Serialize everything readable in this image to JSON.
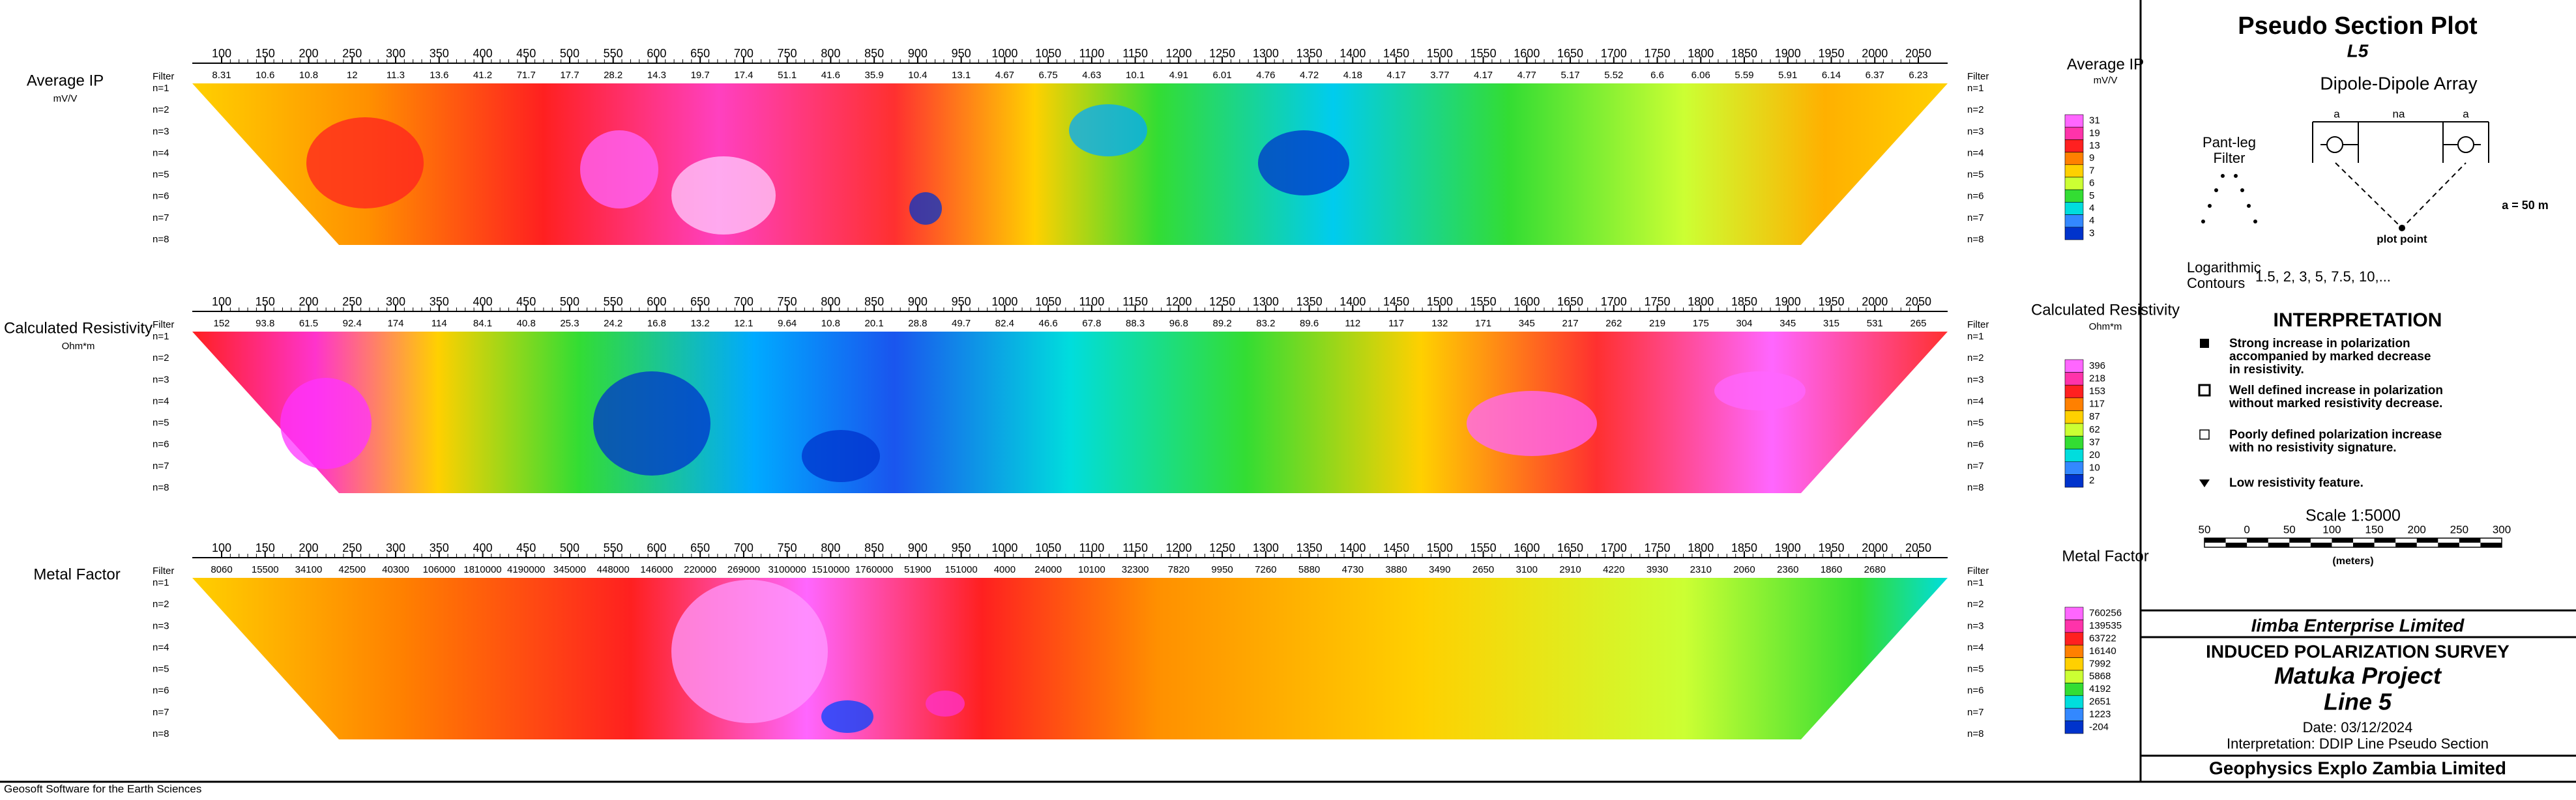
{
  "chart_data": [
    {
      "type": "pseudosection",
      "title": "Average IP",
      "unit": "mV/V",
      "filter_label": "Filter",
      "categories": [
        100,
        150,
        200,
        250,
        300,
        350,
        400,
        450,
        500,
        550,
        600,
        650,
        700,
        750,
        800,
        850,
        900,
        950,
        1000,
        1050,
        1100,
        1150,
        1200,
        1250,
        1300,
        1350,
        1400,
        1450,
        1500,
        1550,
        1600,
        1650,
        1700,
        1750,
        1800,
        1850,
        1900,
        1950,
        2000,
        2050
      ],
      "values": [
        8.31,
        10.6,
        10.8,
        12,
        11.3,
        13.6,
        41.2,
        71.7,
        17.7,
        28.2,
        14.3,
        19.7,
        17.4,
        51.1,
        41.6,
        35.9,
        10.4,
        13.1,
        4.67,
        6.75,
        4.63,
        10.1,
        4.91,
        6.01,
        4.76,
        4.72,
        4.18,
        4.17,
        3.77,
        4.17,
        4.77,
        5.17,
        5.52,
        6.6,
        6.06,
        5.59,
        5.91,
        6.14,
        6.37,
        6.23
      ],
      "rows": [
        "n=1",
        "n=2",
        "n=3",
        "n=4",
        "n=5",
        "n=6",
        "n=7",
        "n=8"
      ],
      "legend": [
        31,
        19,
        13,
        9,
        7,
        6,
        5,
        4,
        4,
        3
      ],
      "colors": [
        "#ff66ff",
        "#ff33aa",
        "#ff2020",
        "#ff8000",
        "#ffd000",
        "#ccff33",
        "#33dd33",
        "#00dddd",
        "#3388ff",
        "#0033cc"
      ]
    },
    {
      "type": "pseudosection",
      "title": "Calculated Resistivity",
      "unit": "Ohm*m",
      "filter_label": "Filter",
      "categories": [
        100,
        150,
        200,
        250,
        300,
        350,
        400,
        450,
        500,
        550,
        600,
        650,
        700,
        750,
        800,
        850,
        900,
        950,
        1000,
        1050,
        1100,
        1150,
        1200,
        1250,
        1300,
        1350,
        1400,
        1450,
        1500,
        1550,
        1600,
        1650,
        1700,
        1750,
        1800,
        1850,
        1900,
        1950,
        2000,
        2050
      ],
      "values": [
        152,
        93.8,
        61.5,
        92.4,
        174,
        114,
        84.1,
        40.8,
        25.3,
        24.2,
        16.8,
        13.2,
        12.1,
        9.64,
        10.8,
        20.1,
        28.8,
        49.7,
        82.4,
        46.6,
        67.8,
        88.3,
        96.8,
        89.2,
        83.2,
        89.6,
        112,
        117,
        132,
        171,
        345,
        217,
        262,
        219,
        175,
        304,
        345,
        315,
        531,
        265
      ],
      "rows": [
        "n=1",
        "n=2",
        "n=3",
        "n=4",
        "n=5",
        "n=6",
        "n=7",
        "n=8"
      ],
      "legend": [
        396,
        218,
        153,
        117,
        87,
        62,
        37,
        20,
        10,
        2
      ],
      "colors": [
        "#ff66ff",
        "#ff33aa",
        "#ff2020",
        "#ff8000",
        "#ffd000",
        "#ccff33",
        "#33dd33",
        "#00dddd",
        "#3388ff",
        "#0033cc"
      ]
    },
    {
      "type": "pseudosection",
      "title": "Metal Factor",
      "unit": null,
      "filter_label": "Filter",
      "categories": [
        100,
        150,
        200,
        250,
        300,
        350,
        400,
        450,
        500,
        550,
        600,
        650,
        700,
        750,
        800,
        850,
        900,
        950,
        1000,
        1050,
        1100,
        1150,
        1200,
        1250,
        1300,
        1350,
        1400,
        1450,
        1500,
        1550,
        1600,
        1650,
        1700,
        1750,
        1800,
        1850,
        1900,
        1950,
        2000,
        2050
      ],
      "values": [
        8060,
        15500,
        34100,
        42500,
        40300,
        106000,
        1810000,
        4190000,
        345000,
        448000,
        146000,
        220000,
        269000,
        3100000,
        1510000,
        1760000,
        51900,
        151000,
        4000,
        24000,
        10100,
        32300,
        7820,
        9950,
        7260,
        5880,
        4730,
        3880,
        3490,
        2650,
        3100,
        2910,
        4220,
        3930,
        2310,
        2060,
        2360,
        1860,
        2680,
        null
      ],
      "rows": [
        "n=1",
        "n=2",
        "n=3",
        "n=4",
        "n=5",
        "n=6",
        "n=7",
        "n=8"
      ],
      "legend": [
        760256,
        139535,
        63722,
        16140,
        7992,
        5868,
        4192,
        2651,
        1223,
        -204
      ],
      "colors": [
        "#ff66ff",
        "#ff33aa",
        "#ff2020",
        "#ff8000",
        "#ffd000",
        "#ccff33",
        "#33dd33",
        "#00dddd",
        "#3388ff",
        "#0033cc"
      ]
    }
  ],
  "side": {
    "title": "Pseudo Section Plot",
    "line": "L5",
    "array": "Dipole-Dipole Array",
    "a1": "a",
    "na": "na",
    "a2": "a",
    "spacing": "a = 50 m",
    "plot_point": "plot point",
    "filter": "Pant-leg\nFilter",
    "contours": "Logarithmic\nContours",
    "contour_levels": "1.5, 2, 3, 5, 7.5, 10,...",
    "interpretation_title": "INTERPRETATION",
    "interpretation": [
      "Strong increase in polarization accompanied by marked decrease in resistivity.",
      "Well defined increase in polarization without marked resistivity decrease.",
      "Poorly defined polarization increase with no resistivity signature.",
      "Low resistivity feature."
    ],
    "scale": "Scale 1:5000",
    "scale_ticks": [
      50,
      0,
      50,
      100,
      150,
      200,
      250,
      300
    ],
    "scale_unit": "(meters)"
  },
  "title_block": {
    "client": "Iimba Enterprise Limited",
    "survey": "INDUCED POLARIZATION SURVEY",
    "project": "Matuka Project",
    "line": "Line 5",
    "date": "Date: 03/12/2024",
    "interpretation": "Interpretation: DDIP Line Pseudo Section",
    "contractor": "Geophysics Explo Zambia Limited"
  },
  "footer": "Geosoft Software for the Earth Sciences"
}
